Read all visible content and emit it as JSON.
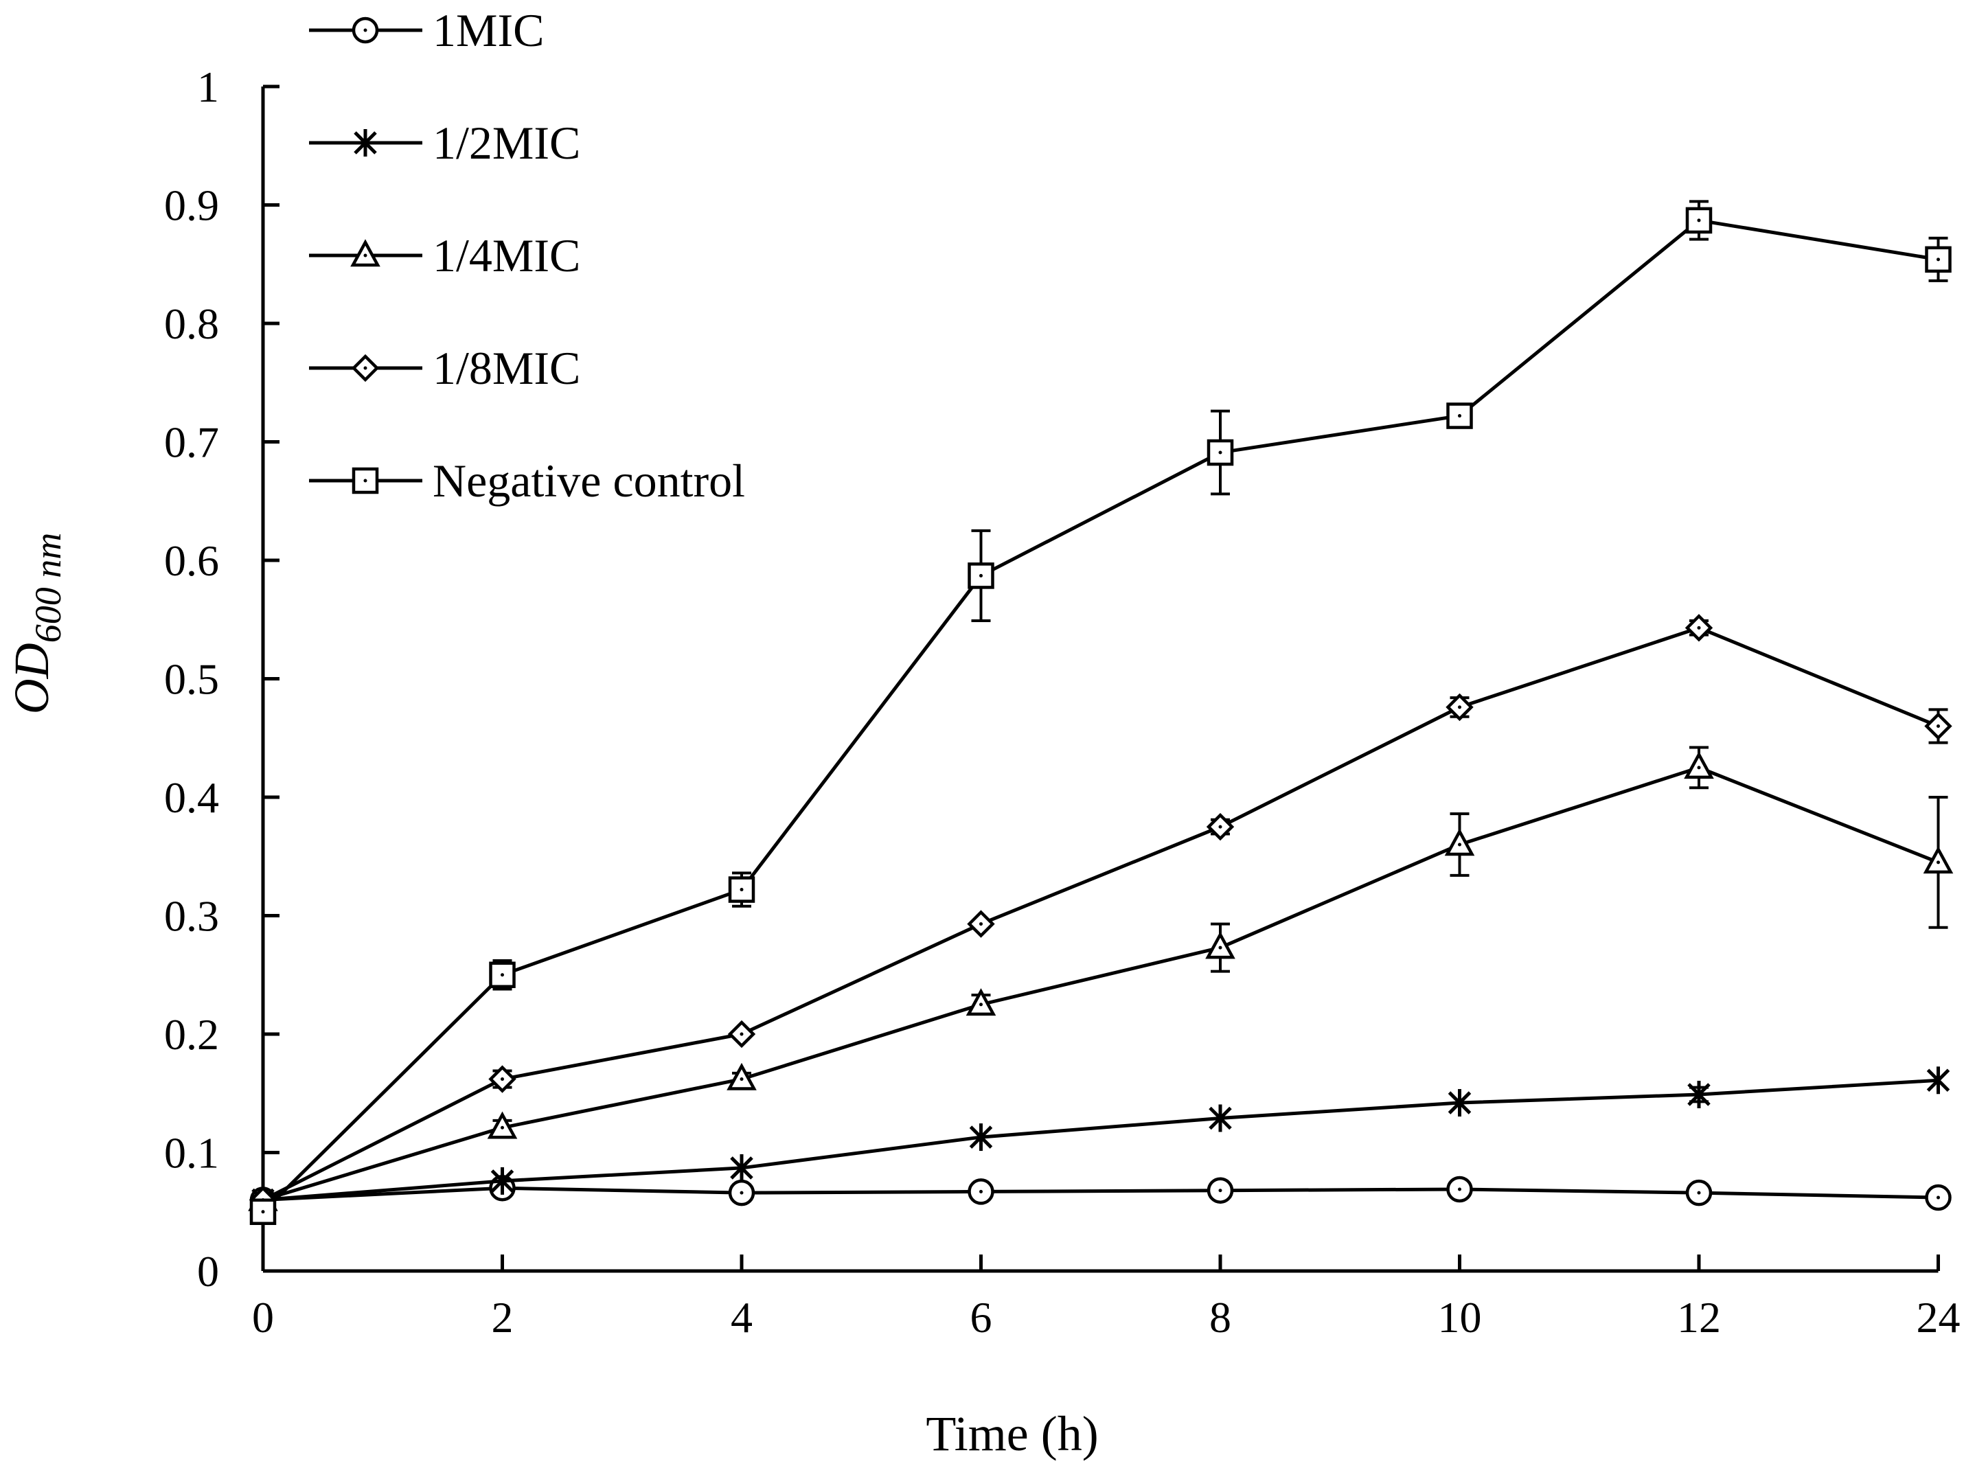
{
  "chart_data": {
    "type": "line",
    "title": "",
    "xlabel": "Time (h)",
    "ylabel": {
      "main": "OD",
      "subscript": "600 nm"
    },
    "categories": [
      "0",
      "2",
      "4",
      "6",
      "8",
      "10",
      "12",
      "24"
    ],
    "ylim": [
      0,
      1
    ],
    "y_ticks": [
      "0",
      "0.1",
      "0.2",
      "0.3",
      "0.4",
      "0.5",
      "0.6",
      "0.7",
      "0.8",
      "0.9",
      "1"
    ],
    "grid": false,
    "legend_position": "top-left",
    "series": [
      {
        "name": "1MIC",
        "marker": "circle",
        "values": [
          0.06,
          0.07,
          0.066,
          0.067,
          0.068,
          0.069,
          0.066,
          0.062
        ],
        "errors": [
          0.004,
          0.003,
          0.003,
          0.003,
          0.003,
          0.003,
          0.003,
          0.003
        ]
      },
      {
        "name": "1/2MIC",
        "marker": "star",
        "values": [
          0.06,
          0.076,
          0.087,
          0.113,
          0.129,
          0.142,
          0.149,
          0.161
        ],
        "errors": [
          0.003,
          0.003,
          0.004,
          0.004,
          0.004,
          0.004,
          0.006,
          0.004
        ]
      },
      {
        "name": "1/4MIC",
        "marker": "triangle",
        "values": [
          0.06,
          0.121,
          0.162,
          0.225,
          0.273,
          0.36,
          0.425,
          0.345
        ],
        "errors": [
          0.003,
          0.006,
          0.005,
          0.008,
          0.02,
          0.026,
          0.017,
          0.055
        ]
      },
      {
        "name": "1/8MIC",
        "marker": "diamond",
        "values": [
          0.06,
          0.162,
          0.2,
          0.293,
          0.375,
          0.476,
          0.543,
          0.46
        ],
        "errors": [
          0.003,
          0.007,
          0.004,
          0.004,
          0.006,
          0.008,
          0.006,
          0.014
        ]
      },
      {
        "name": "Negative control",
        "marker": "square",
        "values": [
          0.05,
          0.25,
          0.322,
          0.587,
          0.691,
          0.722,
          0.887,
          0.854
        ],
        "errors": [
          0.003,
          0.012,
          0.014,
          0.038,
          0.035,
          0.008,
          0.016,
          0.018
        ]
      }
    ]
  }
}
